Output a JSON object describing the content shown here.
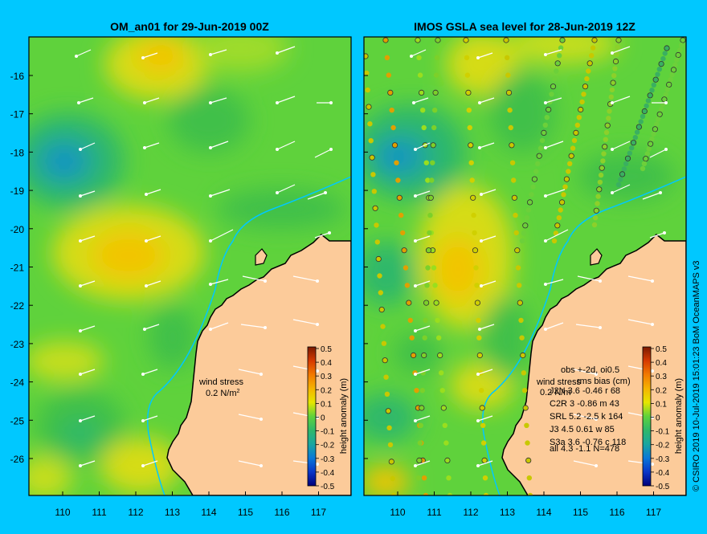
{
  "colors": {
    "background": "#00c8ff",
    "land": "#fccb9a",
    "coast": "#000000",
    "ocean_base": "#5fd23c"
  },
  "left_panel": {
    "title": "OM_an01 for 29-Jun-2019 00Z",
    "wind_label_1": "wind stress",
    "wind_label_2": "0.2 N/m",
    "wind_label_sup": "2",
    "colorbar": {
      "label": "height anomaly (m)",
      "ticks": [
        "0.5",
        "0.4",
        "0.3",
        "0.2",
        "0.1",
        "0",
        "-0.1",
        "-0.2",
        "-0.3",
        "-0.4",
        "-0.5"
      ]
    }
  },
  "right_panel": {
    "title": "IMOS GSLA sea level  for 28-Jun-2019 12Z",
    "wind_label_1": "wind stress",
    "wind_label_2": "0.2 N/m",
    "stats": {
      "header_1": "obs +-2d, oi0.5",
      "header_2": "rms  bias (cm)",
      "rows": [
        "J2N  3.6 -0.46 r 68",
        "C2R   3 -0.86 m 43",
        "SRL   5.2 -2.5 k 164",
        "J3   4.5 0.61 w 85",
        "S3a   3.6 -0.76 c 118",
        "all   4.3 -1.1 N=478"
      ]
    },
    "colorbar": {
      "label": "height anomaly (m)",
      "ticks": [
        "0.5",
        "0.4",
        "0.3",
        "0.2",
        "0.1",
        "0",
        "-0.1",
        "-0.2",
        "-0.3",
        "-0.4",
        "-0.5"
      ]
    }
  },
  "axes": {
    "y_ticks": [
      "-16",
      "-17",
      "-18",
      "-19",
      "-20",
      "-21",
      "-22",
      "-23",
      "-24",
      "-25",
      "-26"
    ],
    "x_ticks": [
      "110",
      "111",
      "112",
      "113",
      "114",
      "115",
      "116",
      "117"
    ]
  },
  "credit": "© CSIRO 2019   10-Jul-2019 15:01:23 BoM OceanMAPS v3"
}
